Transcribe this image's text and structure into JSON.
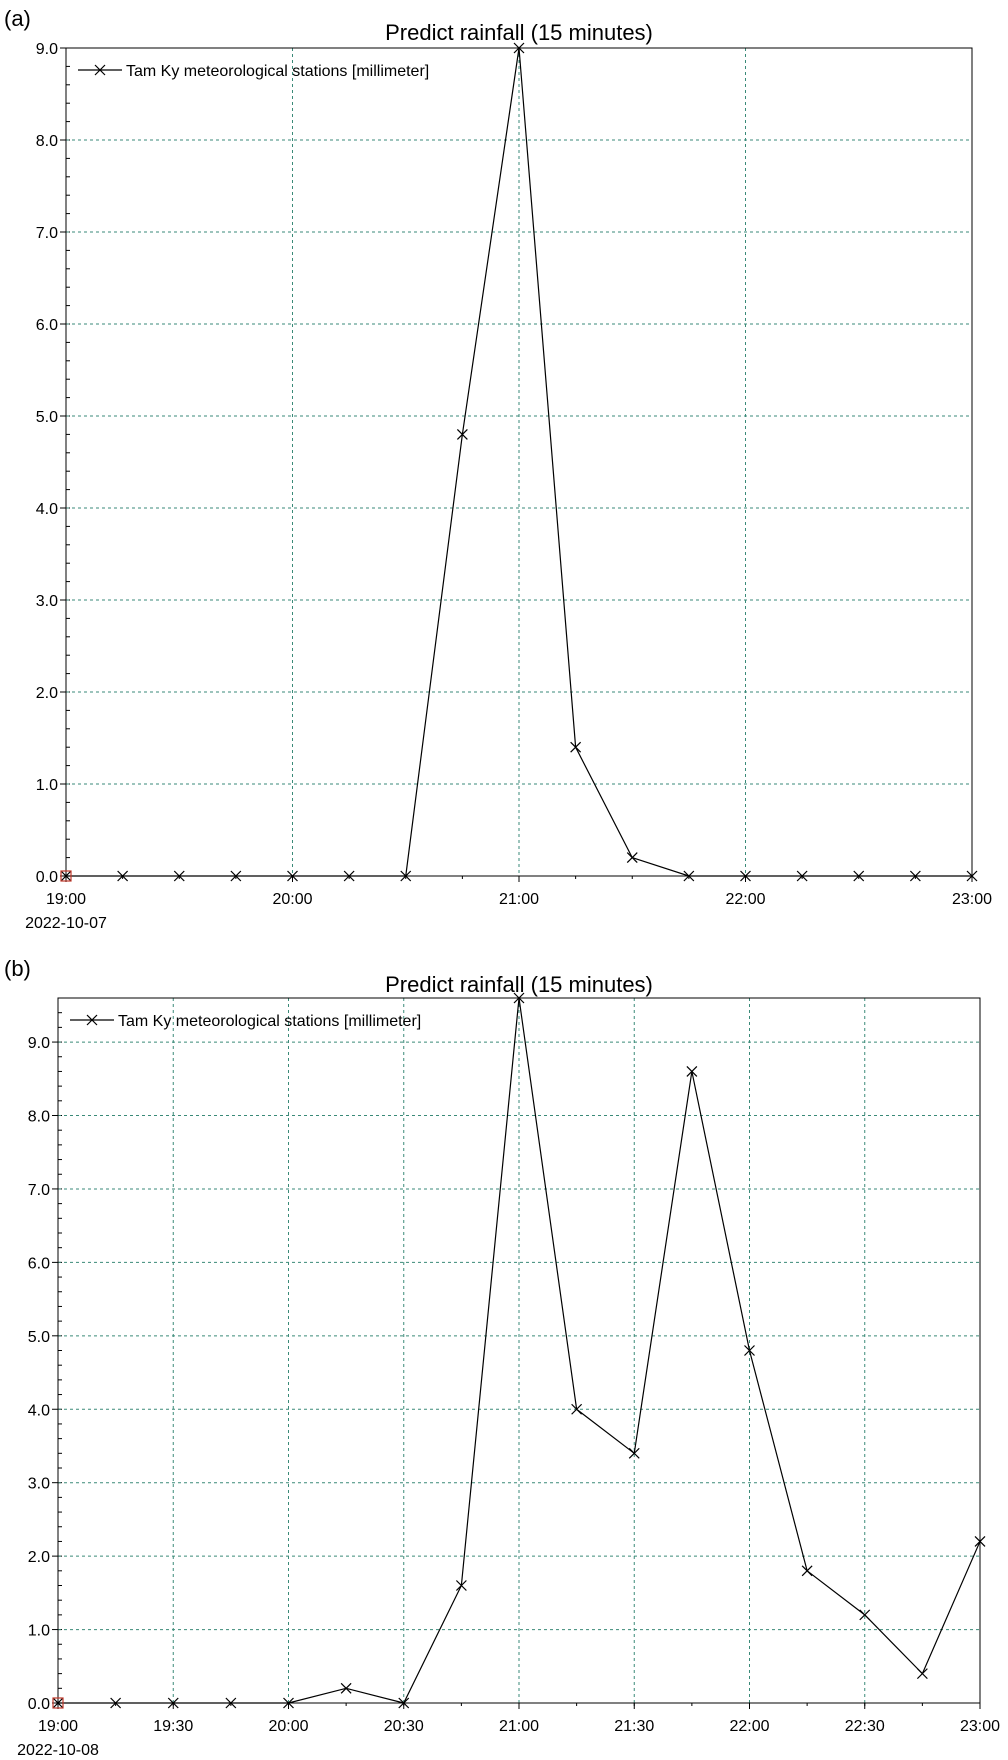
{
  "chart_data": [
    {
      "panel_label": "(a)",
      "type": "line",
      "title": "Predict rainfall (15 minutes)",
      "xlabel": "",
      "ylabel": "",
      "date_label": "2022-10-07",
      "legend": {
        "entry": "Tam Ky meteorological stations [millimeter]",
        "placement": "top-left"
      },
      "x_unit": "time of day",
      "xlim": [
        "19:00",
        "23:00"
      ],
      "x_ticks": [
        "19:00",
        "20:00",
        "21:00",
        "22:00",
        "23:00"
      ],
      "ylim": [
        0,
        9.0
      ],
      "y_ticks": [
        "0.0",
        "1.0",
        "2.0",
        "3.0",
        "4.0",
        "5.0",
        "6.0",
        "7.0",
        "8.0",
        "9.0"
      ],
      "grid": true,
      "series": [
        {
          "name": "Tam Ky meteorological stations [millimeter]",
          "color": "#000000",
          "marker": "x",
          "x": [
            "19:00",
            "19:15",
            "19:30",
            "19:45",
            "20:00",
            "20:15",
            "20:30",
            "20:45",
            "21:00",
            "21:15",
            "21:30",
            "21:45",
            "22:00",
            "22:15",
            "22:30",
            "22:45",
            "23:00"
          ],
          "values": [
            0,
            0,
            0,
            0,
            0,
            0,
            0,
            4.8,
            9.0,
            1.4,
            0.2,
            0,
            0,
            0,
            0,
            0,
            0
          ]
        }
      ]
    },
    {
      "panel_label": "(b)",
      "type": "line",
      "title": "Predict rainfall (15 minutes)",
      "xlabel": "",
      "ylabel": "",
      "date_label": "2022-10-08",
      "legend": {
        "entry": "Tam Ky meteorological stations [millimeter]",
        "placement": "top-left"
      },
      "x_unit": "time of day",
      "xlim": [
        "19:00",
        "23:00"
      ],
      "x_ticks": [
        "19:00",
        "19:30",
        "20:00",
        "20:30",
        "21:00",
        "21:30",
        "22:00",
        "22:30",
        "23:00"
      ],
      "ylim": [
        0,
        9.6
      ],
      "y_ticks": [
        "0.0",
        "1.0",
        "2.0",
        "3.0",
        "4.0",
        "5.0",
        "6.0",
        "7.0",
        "8.0",
        "9.0"
      ],
      "grid": true,
      "series": [
        {
          "name": "Tam Ky meteorological stations [millimeter]",
          "color": "#000000",
          "marker": "x",
          "x": [
            "19:00",
            "19:15",
            "19:30",
            "19:45",
            "20:00",
            "20:15",
            "20:30",
            "20:45",
            "21:00",
            "21:15",
            "21:30",
            "21:45",
            "22:00",
            "22:15",
            "22:30",
            "22:45",
            "23:00"
          ],
          "values": [
            0,
            0,
            0,
            0,
            0,
            0.2,
            0,
            1.6,
            9.6,
            4.0,
            3.4,
            8.6,
            4.8,
            1.8,
            1.2,
            0.4,
            2.2
          ]
        }
      ]
    }
  ],
  "colors": {
    "line": "#000000",
    "grid": "#3a8a78",
    "axis": "#000000",
    "origin_marker": "#c0392b"
  }
}
